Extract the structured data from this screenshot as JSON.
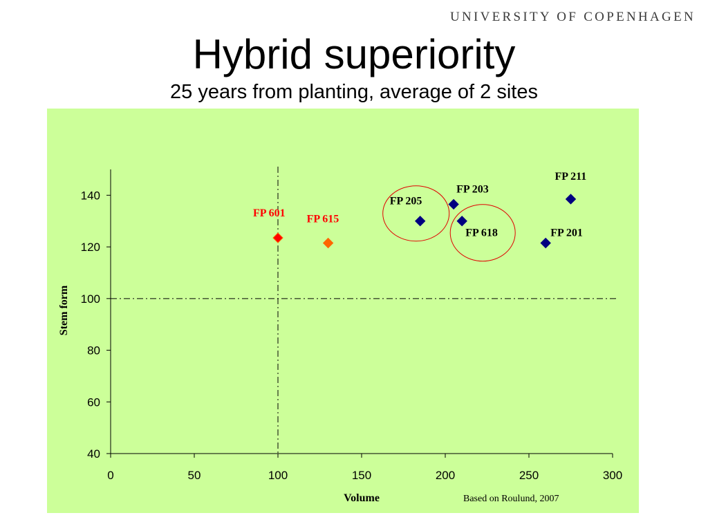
{
  "header": {
    "institution": "UNIVERSITY OF COPENHAGEN",
    "title": "Hybrid superiority",
    "subtitle": "25 years from planting, average of 2 sites"
  },
  "colors": {
    "plot_background": "#ccff99",
    "blue_series": "#000080",
    "red_point": "#ff0000",
    "orange_point": "#ff6600",
    "circle": "#e00000",
    "label_dark": "#000000",
    "label_red": "#ff0000"
  },
  "chart_data": {
    "type": "scatter",
    "xlabel": "Volume",
    "ylabel": "Stem form",
    "xlim": [
      0,
      300
    ],
    "ylim": [
      40,
      150
    ],
    "xticks": [
      0,
      50,
      100,
      150,
      200,
      250,
      300
    ],
    "yticks": [
      40,
      60,
      80,
      100,
      120,
      140
    ],
    "reference_lines": {
      "x": 100,
      "y": 100
    },
    "points": [
      {
        "label": "FP 601",
        "x": 100,
        "y": 123.5,
        "color": "#ff0000",
        "label_color": "#ff0000"
      },
      {
        "label": "FP 615",
        "x": 130,
        "y": 121.5,
        "color": "#ff6600",
        "label_color": "#ff0000"
      },
      {
        "label": "FP 205",
        "x": 185,
        "y": 130,
        "color": "#000080",
        "label_color": "#000000"
      },
      {
        "label": "FP 203",
        "x": 205,
        "y": 136.5,
        "color": "#000080",
        "label_color": "#000000"
      },
      {
        "label": "FP 618",
        "x": 210,
        "y": 130,
        "color": "#000080",
        "label_color": "#000000"
      },
      {
        "label": "FP 201",
        "x": 260,
        "y": 121.5,
        "color": "#000080",
        "label_color": "#000000"
      },
      {
        "label": "FP 211",
        "x": 275,
        "y": 138.5,
        "color": "#000080",
        "label_color": "#000000"
      }
    ],
    "circled": [
      "FP 205",
      "FP 618"
    ],
    "source_note": "Based on Roulund, 2007"
  }
}
